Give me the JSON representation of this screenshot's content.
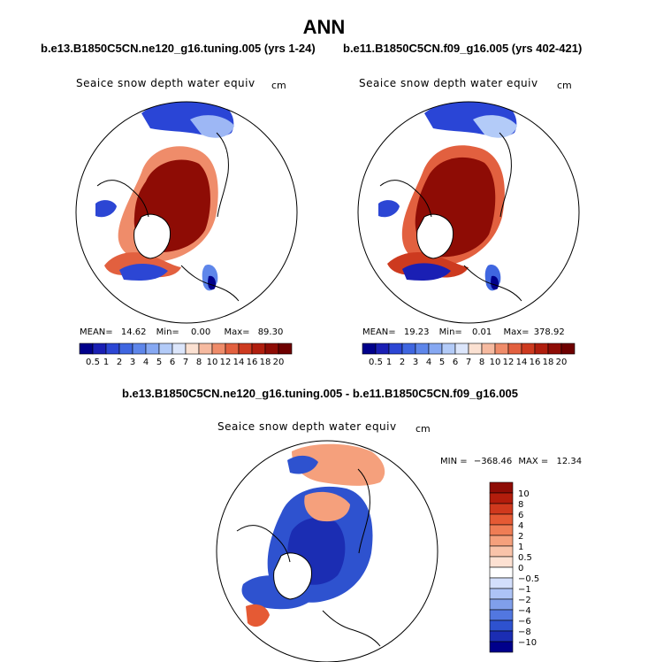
{
  "title": "ANN",
  "chart_data": [
    {
      "type": "heatmap",
      "projection": "north-polar-stereographic",
      "case_title": "b.e13.B1850C5CN.ne120_g16.tuning.005 (yrs 1-24)",
      "variable_title": "Seaice snow depth water equiv",
      "units": "cm",
      "stats": {
        "mean_label": "MEAN=",
        "mean": "14.62",
        "min_label": "Min=",
        "min": "0.00",
        "max_label": "Max=",
        "max": "89.30"
      },
      "colorbar": {
        "orientation": "horizontal",
        "levels": [
          "0.5",
          "1",
          "2",
          "3",
          "4",
          "5",
          "6",
          "7",
          "8",
          "10",
          "12",
          "14",
          "16",
          "18",
          "20"
        ],
        "colors": [
          "#00008b",
          "#1a1fb4",
          "#2c46d4",
          "#3f66e0",
          "#5e86ea",
          "#86a8f2",
          "#b3cbf8",
          "#dce6fb",
          "#fbe1d2",
          "#f6baa0",
          "#ef8c6a",
          "#e2603f",
          "#cd3a1f",
          "#b01e0e",
          "#8e0c05",
          "#6e0000"
        ]
      }
    },
    {
      "type": "heatmap",
      "projection": "north-polar-stereographic",
      "case_title": "b.e11.B1850C5CN.f09_g16.005 (yrs 402-421)",
      "variable_title": "Seaice snow depth water equiv",
      "units": "cm",
      "stats": {
        "mean_label": "MEAN=",
        "mean": "19.23",
        "min_label": "Min=",
        "min": "0.01",
        "max_label": "Max=",
        "max": "378.92"
      },
      "colorbar": {
        "orientation": "horizontal",
        "levels": [
          "0.5",
          "1",
          "2",
          "3",
          "4",
          "5",
          "6",
          "7",
          "8",
          "10",
          "12",
          "14",
          "16",
          "18",
          "20"
        ],
        "colors": [
          "#00008b",
          "#1a1fb4",
          "#2c46d4",
          "#3f66e0",
          "#5e86ea",
          "#86a8f2",
          "#b3cbf8",
          "#dce6fb",
          "#fbe1d2",
          "#f6baa0",
          "#ef8c6a",
          "#e2603f",
          "#cd3a1f",
          "#b01e0e",
          "#8e0c05",
          "#6e0000"
        ]
      }
    },
    {
      "type": "heatmap",
      "projection": "north-polar-stereographic",
      "case_title": "b.e13.B1850C5CN.ne120_g16.tuning.005 - b.e11.B1850C5CN.f09_g16.005",
      "variable_title": "Seaice snow depth water equiv",
      "units": "cm",
      "stats": {
        "min_label": "MIN =",
        "min": "−368.46",
        "max_label": "MAX =",
        "max": "12.34"
      },
      "colorbar": {
        "orientation": "vertical",
        "levels": [
          "10",
          "8",
          "6",
          "4",
          "2",
          "1",
          "0.5",
          "0",
          "−0.5",
          "−1",
          "−2",
          "−4",
          "−6",
          "−8",
          "−10"
        ],
        "colors": [
          "#8e0c05",
          "#b31d0c",
          "#d0391d",
          "#e55a34",
          "#ef7d55",
          "#f5a07c",
          "#f9c3a9",
          "#fde1d2",
          "#ffffff",
          "#d3dffc",
          "#adc3f6",
          "#809feb",
          "#5277e0",
          "#2e52cf",
          "#1b2db3",
          "#00008b"
        ]
      }
    }
  ]
}
